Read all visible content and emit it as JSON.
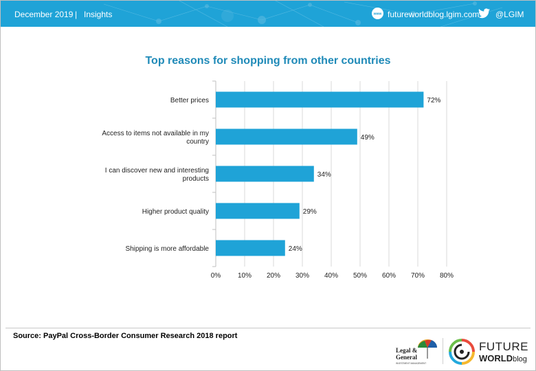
{
  "header": {
    "date": "December 2019",
    "separator": "|",
    "section": "Insights",
    "site": "futureworldblog.lgim.com",
    "handle": "@LGIM"
  },
  "chart_data": {
    "type": "bar",
    "orientation": "horizontal",
    "title": "Top reasons for shopping from other countries",
    "categories": [
      "Better prices",
      "Access to items not available in my country",
      "I can discover new and interesting products",
      "Higher product quality",
      "Shipping is more affordable"
    ],
    "category_lines": [
      [
        "Better prices"
      ],
      [
        "Access to items not available in my",
        "country"
      ],
      [
        "I can discover new and interesting",
        "products"
      ],
      [
        "Higher product quality"
      ],
      [
        "Shipping is more affordable"
      ]
    ],
    "values": [
      72,
      49,
      34,
      29,
      24
    ],
    "data_labels": [
      "72%",
      "49%",
      "34%",
      "29%",
      "24%"
    ],
    "xlim": [
      0,
      80
    ],
    "x_ticks": [
      0,
      10,
      20,
      30,
      40,
      50,
      60,
      70,
      80
    ],
    "x_tick_labels": [
      "0%",
      "10%",
      "20%",
      "30%",
      "40%",
      "50%",
      "60%",
      "70%",
      "80%"
    ],
    "grid": true,
    "bar_color": "#1fa3d7"
  },
  "footer": {
    "source": "Source: PayPal Cross-Border Consumer Research 2018 report",
    "lg_name_line1": "Legal &",
    "lg_name_line2": "General",
    "lg_sub": "INVESTMENT MANAGEMENT",
    "fw_line1": "FUTURE",
    "fw_line2": "WORLD",
    "fw_blog": "blog"
  }
}
